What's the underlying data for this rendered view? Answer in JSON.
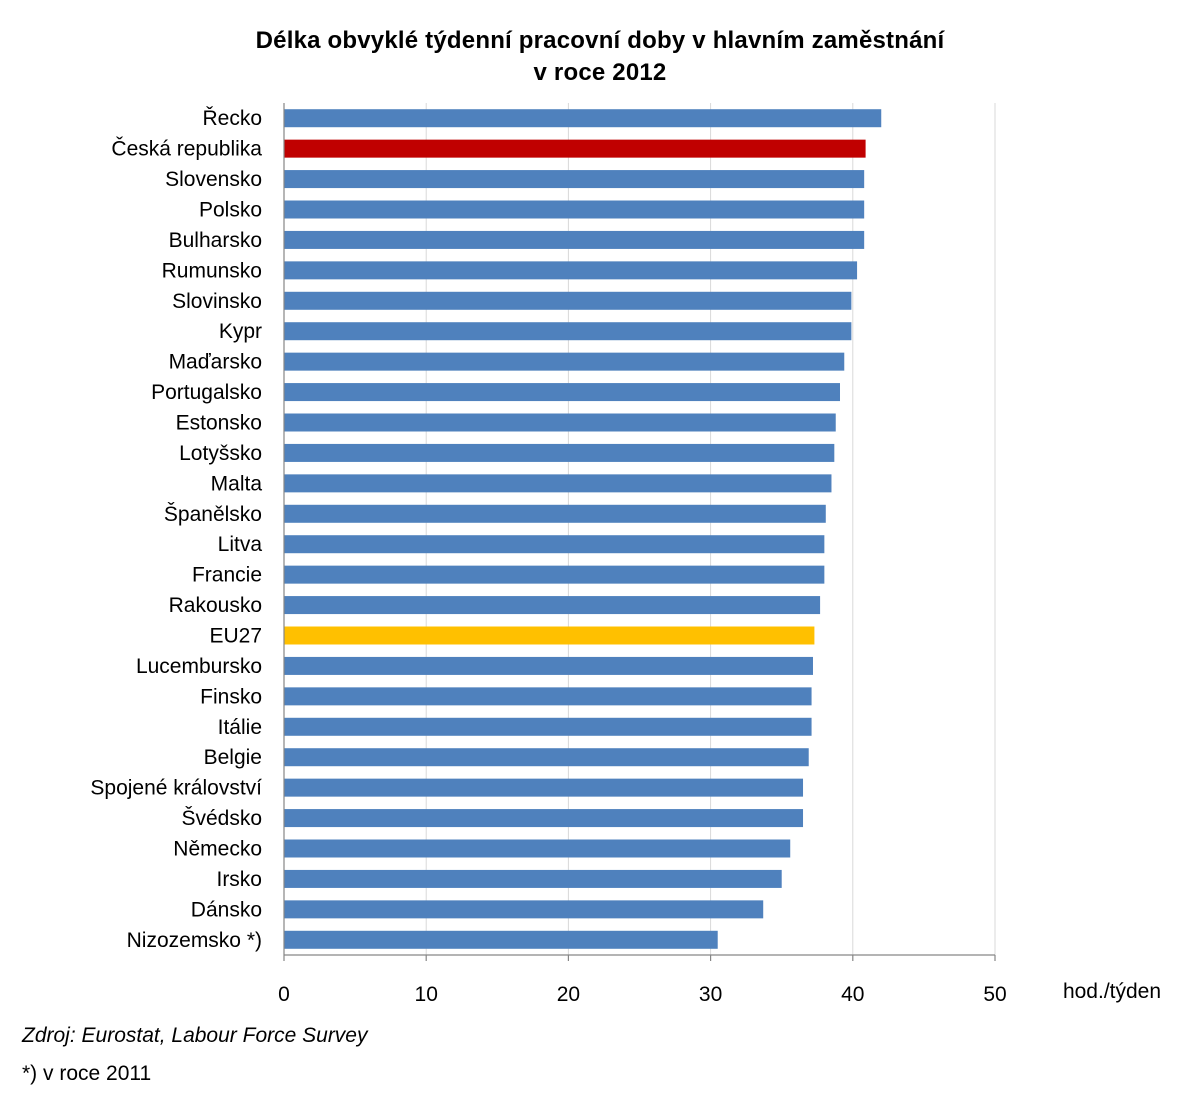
{
  "chart_data": {
    "type": "bar",
    "orientation": "horizontal",
    "title_lines": [
      "Délka obvyklé týdenní pracovní doby v hlavním zaměstnání",
      "v roce 2012"
    ],
    "categories": [
      "Řecko",
      "Česká republika",
      "Slovensko",
      "Polsko",
      "Bulharsko",
      "Rumunsko",
      "Slovinsko",
      "Kypr",
      "Maďarsko",
      "Portugalsko",
      "Estonsko",
      "Lotyšsko",
      "Malta",
      "Španělsko",
      "Litva",
      "Francie",
      "Rakousko",
      "EU27",
      "Lucembursko",
      "Finsko",
      "Itálie",
      "Belgie",
      "Spojené království",
      "Švédsko",
      "Německo",
      "Irsko",
      "Dánsko",
      "Nizozemsko *)"
    ],
    "values": [
      42.0,
      40.9,
      40.8,
      40.8,
      40.8,
      40.3,
      39.9,
      39.9,
      39.4,
      39.1,
      38.8,
      38.7,
      38.5,
      38.1,
      38.0,
      38.0,
      37.7,
      37.3,
      37.2,
      37.1,
      37.1,
      36.9,
      36.5,
      36.5,
      35.6,
      35.0,
      33.7,
      30.5
    ],
    "highlight": {
      "Česká republika": "#c00000",
      "EU27": "#ffc000"
    },
    "default_color": "#4f81bd",
    "xlim": [
      0,
      50
    ],
    "xticks": [
      0,
      10,
      20,
      30,
      40,
      50
    ],
    "xlabel": "hod./týden",
    "grid": true,
    "legend": "none"
  },
  "source": "Zdroj: Eurostat, Labour Force Survey",
  "note": "*)  v roce 2011"
}
